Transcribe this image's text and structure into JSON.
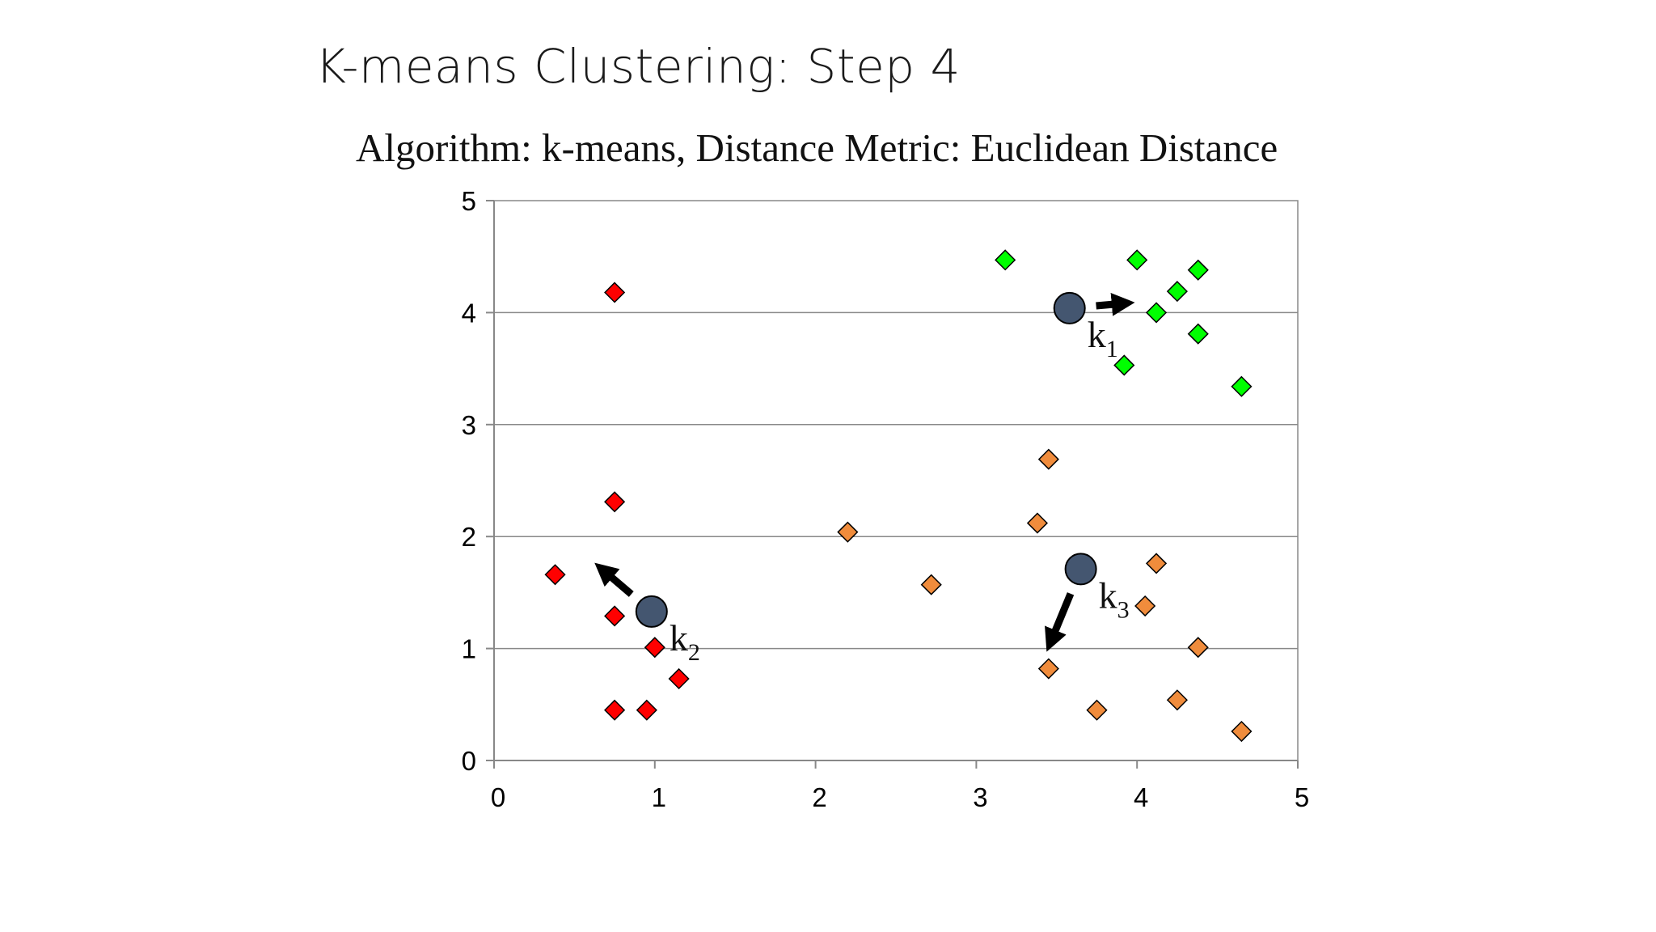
{
  "slide": {
    "title": "K-means Clustering: Step 4"
  },
  "chart_data": {
    "type": "scatter",
    "title": "Algorithm: k-means, Distance Metric: Euclidean Distance",
    "xlim": [
      0,
      5
    ],
    "ylim": [
      0,
      5
    ],
    "x_ticks": [
      "0",
      "1",
      "2",
      "3",
      "4",
      "5"
    ],
    "y_ticks": [
      "0",
      "1",
      "2",
      "3",
      "4",
      "5"
    ],
    "grid": "horizontal",
    "series": [
      {
        "color": "#ff0000",
        "marker": "diamond",
        "x": [
          0.75,
          0.75,
          0.38,
          0.75,
          1.0,
          1.15,
          0.75,
          0.95
        ],
        "y": [
          4.18,
          2.31,
          1.66,
          1.29,
          1.01,
          0.73,
          0.45,
          0.45
        ]
      },
      {
        "color": "#00ff00",
        "marker": "diamond",
        "x": [
          3.18,
          4.0,
          4.38,
          4.25,
          4.12,
          4.38,
          3.92,
          4.65
        ],
        "y": [
          4.47,
          4.47,
          4.38,
          4.19,
          4.0,
          3.81,
          3.53,
          3.34
        ]
      },
      {
        "color": "#f08c3c",
        "marker": "diamond",
        "x": [
          3.45,
          2.2,
          3.38,
          2.72,
          4.12,
          4.05,
          4.38,
          3.45,
          3.75,
          4.25,
          4.65
        ],
        "y": [
          2.69,
          2.04,
          2.12,
          1.57,
          1.76,
          1.38,
          1.01,
          0.82,
          0.45,
          0.54,
          0.26
        ]
      }
    ],
    "centroids": [
      {
        "label": "k",
        "sub": "1",
        "x": 3.58,
        "y": 4.04,
        "arrow_to": [
          3.98,
          4.09
        ]
      },
      {
        "label": "k",
        "sub": "2",
        "x": 0.98,
        "y": 1.33,
        "arrow_to": [
          0.63,
          1.76
        ]
      },
      {
        "label": "k",
        "sub": "3",
        "x": 3.65,
        "y": 1.71,
        "arrow_to": [
          3.44,
          0.98
        ]
      }
    ],
    "colors": {
      "centroid_fill": "#445670",
      "arrow": "#000000",
      "grid": "#888888"
    }
  }
}
